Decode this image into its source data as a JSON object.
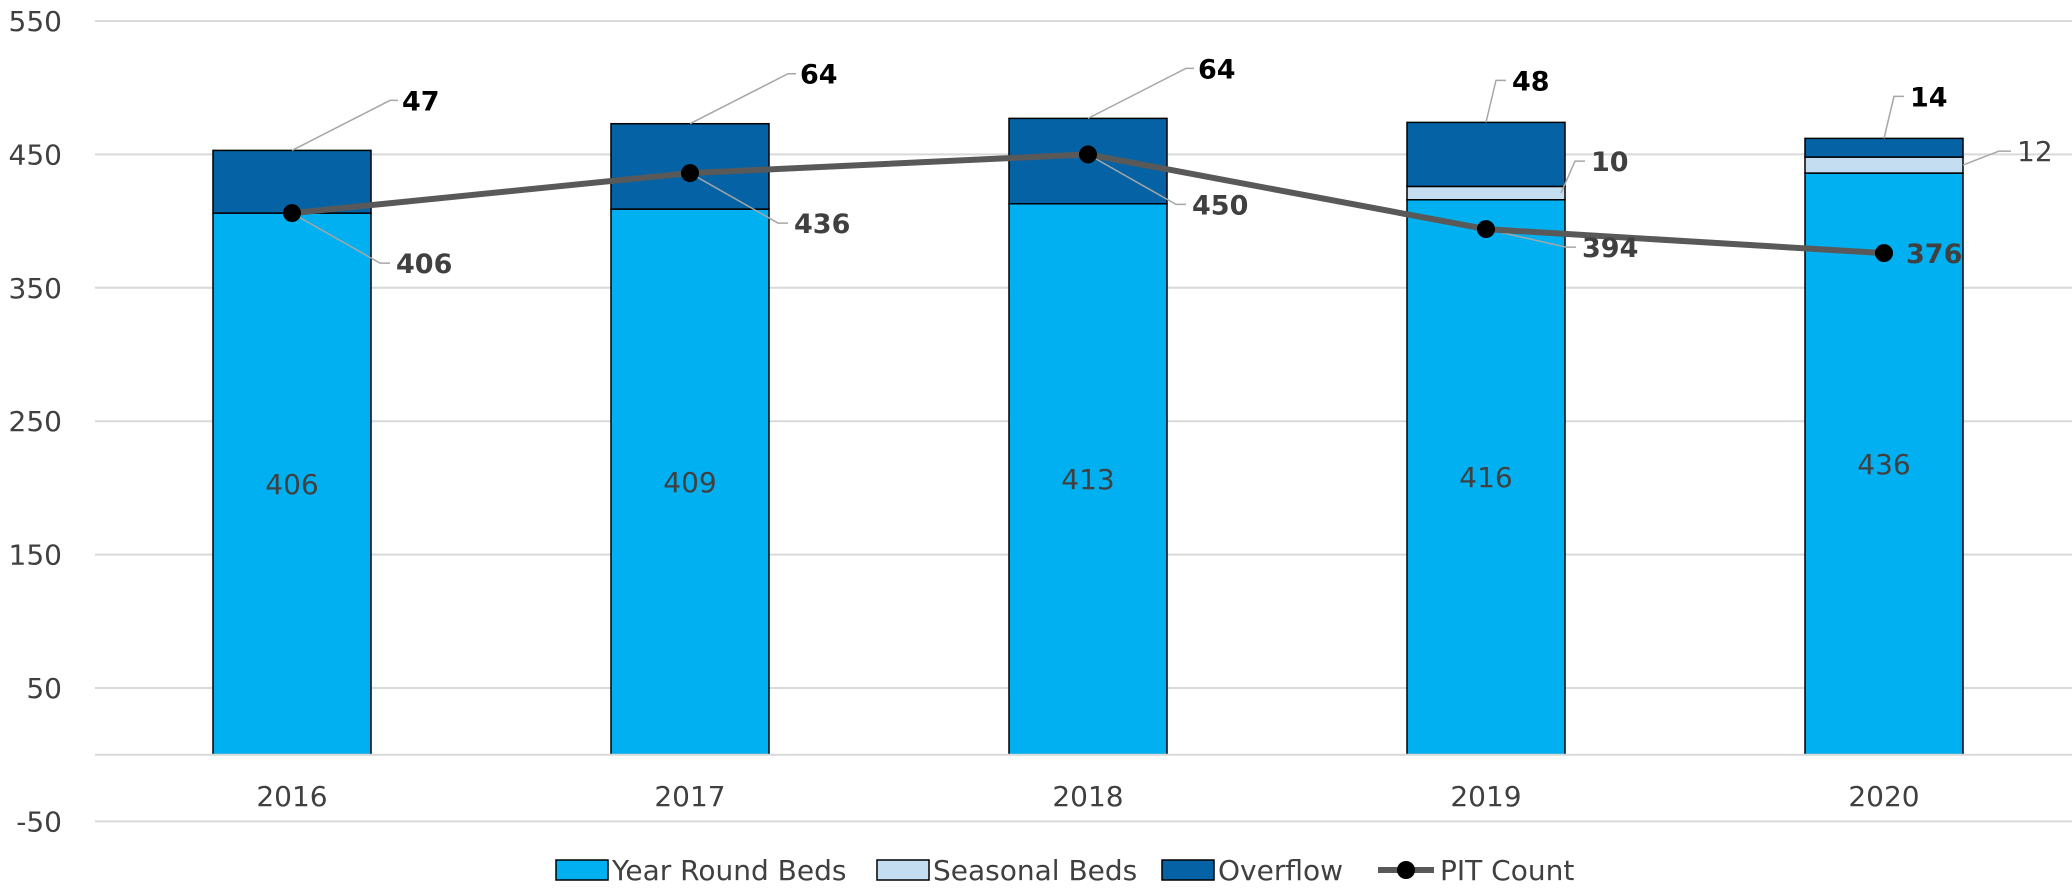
{
  "chart_data": {
    "type": "bar",
    "stacked": true,
    "title": "",
    "xlabel": "",
    "ylabel": "",
    "categories": [
      "2016",
      "2017",
      "2018",
      "2019",
      "2020"
    ],
    "ylim": [
      -50,
      550
    ],
    "yticks": [
      "550",
      "450",
      "350",
      "250",
      "150",
      "50",
      "-50"
    ],
    "grid": true,
    "legend_position": "bottom",
    "series": [
      {
        "name": "Year Round Beds",
        "kind": "bar",
        "color": "#00B0F0",
        "values": [
          406,
          409,
          413,
          416,
          436
        ],
        "labels": [
          "406",
          "409",
          "413",
          "416",
          "436"
        ]
      },
      {
        "name": "Seasonal Beds",
        "kind": "bar",
        "color": "#C5DDF0",
        "values": [
          0,
          0,
          0,
          10,
          12
        ],
        "labels": [
          "",
          "",
          "",
          "10",
          "12"
        ]
      },
      {
        "name": "Overflow",
        "kind": "bar",
        "color": "#0563A5",
        "values": [
          47,
          64,
          64,
          48,
          14
        ],
        "labels": [
          "47",
          "64",
          "64",
          "48",
          "14"
        ]
      },
      {
        "name": "PIT Count",
        "kind": "line",
        "color": "#595959",
        "values": [
          406,
          436,
          450,
          394,
          376
        ],
        "labels": [
          "406",
          "436",
          "450",
          "394",
          "376"
        ]
      }
    ]
  }
}
